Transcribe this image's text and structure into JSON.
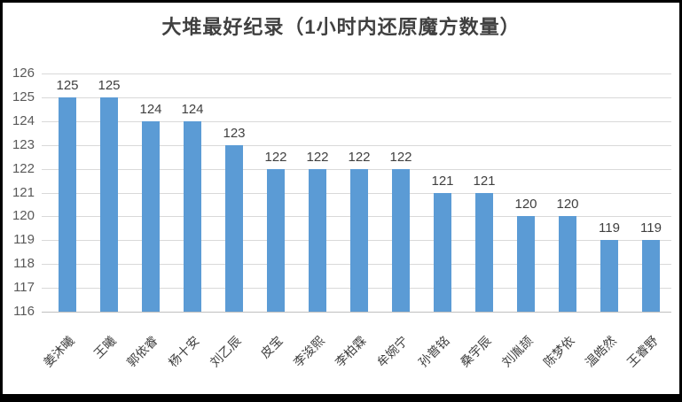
{
  "frame": {
    "background": "#ffffff",
    "border_color": "#000000"
  },
  "chart_data": {
    "type": "bar",
    "title": "大堆最好纪录（1小时内还原魔方数量）",
    "categories": [
      "姜沐曦",
      "王曦",
      "郭依睿",
      "杨十安",
      "刘乙辰",
      "皮宝",
      "李浚熙",
      "李柏霖",
      "牟婉宁",
      "孙普铭",
      "桑宇辰",
      "刘胤颉",
      "陈梦依",
      "温皓然",
      "王睿野"
    ],
    "values": [
      125,
      125,
      124,
      124,
      123,
      122,
      122,
      122,
      122,
      121,
      121,
      120,
      120,
      119,
      119
    ],
    "xlabel": "",
    "ylabel": "",
    "ylim": [
      116,
      126
    ],
    "yticks": [
      116,
      117,
      118,
      119,
      120,
      121,
      122,
      123,
      124,
      125,
      126
    ],
    "grid": true,
    "legend": "none",
    "data_labels": true,
    "bar_color": "#5B9BD5",
    "gridline_color": "#D9D9D9",
    "axis_line_color": "#BFBFBF",
    "tick_label_color": "#595959",
    "data_label_color": "#3F3F3F",
    "title_color": "#404040"
  }
}
